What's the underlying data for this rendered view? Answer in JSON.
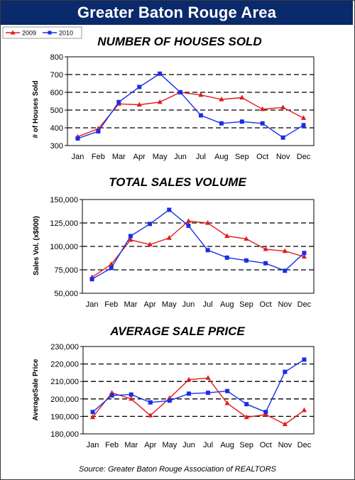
{
  "header": {
    "title": "Greater Baton Rouge Area"
  },
  "legend": [
    {
      "name": "2009",
      "color": "#e11b1b",
      "marker": "triangle"
    },
    {
      "name": "2010",
      "color": "#1a2ee8",
      "marker": "square"
    }
  ],
  "source": "Source: Greater Baton Rouge Association of REALTORS",
  "chart_data": [
    {
      "type": "line",
      "title": "NUMBER OF HOUSES SOLD",
      "ylabel": "# of Houses Sold",
      "categories": [
        "Jan",
        "Feb",
        "Mar",
        "Apr",
        "May",
        "Jun",
        "Jul",
        "Aug",
        "Sep",
        "Oct",
        "Nov",
        "Dec"
      ],
      "ylim": [
        300,
        800
      ],
      "yticks": [
        300,
        400,
        500,
        600,
        700,
        800
      ],
      "ytick_labels": [
        "300",
        "400",
        "500",
        "600",
        "700",
        "800"
      ],
      "series": [
        {
          "name": "2009",
          "values": [
            350,
            395,
            535,
            530,
            545,
            600,
            585,
            560,
            570,
            505,
            515,
            455
          ]
        },
        {
          "name": "2010",
          "values": [
            340,
            380,
            545,
            630,
            705,
            600,
            470,
            425,
            435,
            425,
            345,
            415
          ]
        }
      ]
    },
    {
      "type": "line",
      "title": "TOTAL SALES VOLUME",
      "ylabel": "Sales Vol. (x$000)",
      "categories": [
        "Jan",
        "Feb",
        "Mar",
        "Apr",
        "May",
        "Jun",
        "Jul",
        "Aug",
        "Sep",
        "Oct",
        "Nov",
        "Dec"
      ],
      "ylim": [
        50000,
        150000
      ],
      "yticks": [
        50000,
        75000,
        100000,
        125000,
        150000
      ],
      "ytick_labels": [
        "50,000",
        "75,000",
        "100,000",
        "125,000",
        "150,000"
      ],
      "series": [
        {
          "name": "2009",
          "values": [
            67000,
            81000,
            107000,
            102000,
            109000,
            127000,
            125000,
            111000,
            108000,
            97000,
            95000,
            89000
          ]
        },
        {
          "name": "2010",
          "values": [
            65000,
            77000,
            111000,
            124000,
            139000,
            122000,
            96000,
            88000,
            85000,
            82000,
            74000,
            93000
          ]
        }
      ]
    },
    {
      "type": "line",
      "title": "AVERAGE SALE PRICE",
      "ylabel": "AverageSale Price",
      "categories": [
        "Jan",
        "Feb",
        "Mar",
        "Apr",
        "May",
        "Jun",
        "Jul",
        "Aug",
        "Sep",
        "Oct",
        "Nov",
        "Dec"
      ],
      "ylim": [
        180000,
        230000
      ],
      "yticks": [
        180000,
        190000,
        200000,
        210000,
        220000,
        230000
      ],
      "ytick_labels": [
        "180,000",
        "190,000",
        "200,000",
        "210,000",
        "220,000",
        "230,000"
      ],
      "series": [
        {
          "name": "2009",
          "values": [
            189500,
            203500,
            200000,
            190500,
            200500,
            211000,
            212000,
            197500,
            189500,
            191000,
            185500,
            193500
          ]
        },
        {
          "name": "2010",
          "values": [
            192500,
            202000,
            202500,
            198000,
            199000,
            203000,
            203500,
            204500,
            197000,
            192500,
            215500,
            222500
          ]
        }
      ]
    }
  ]
}
